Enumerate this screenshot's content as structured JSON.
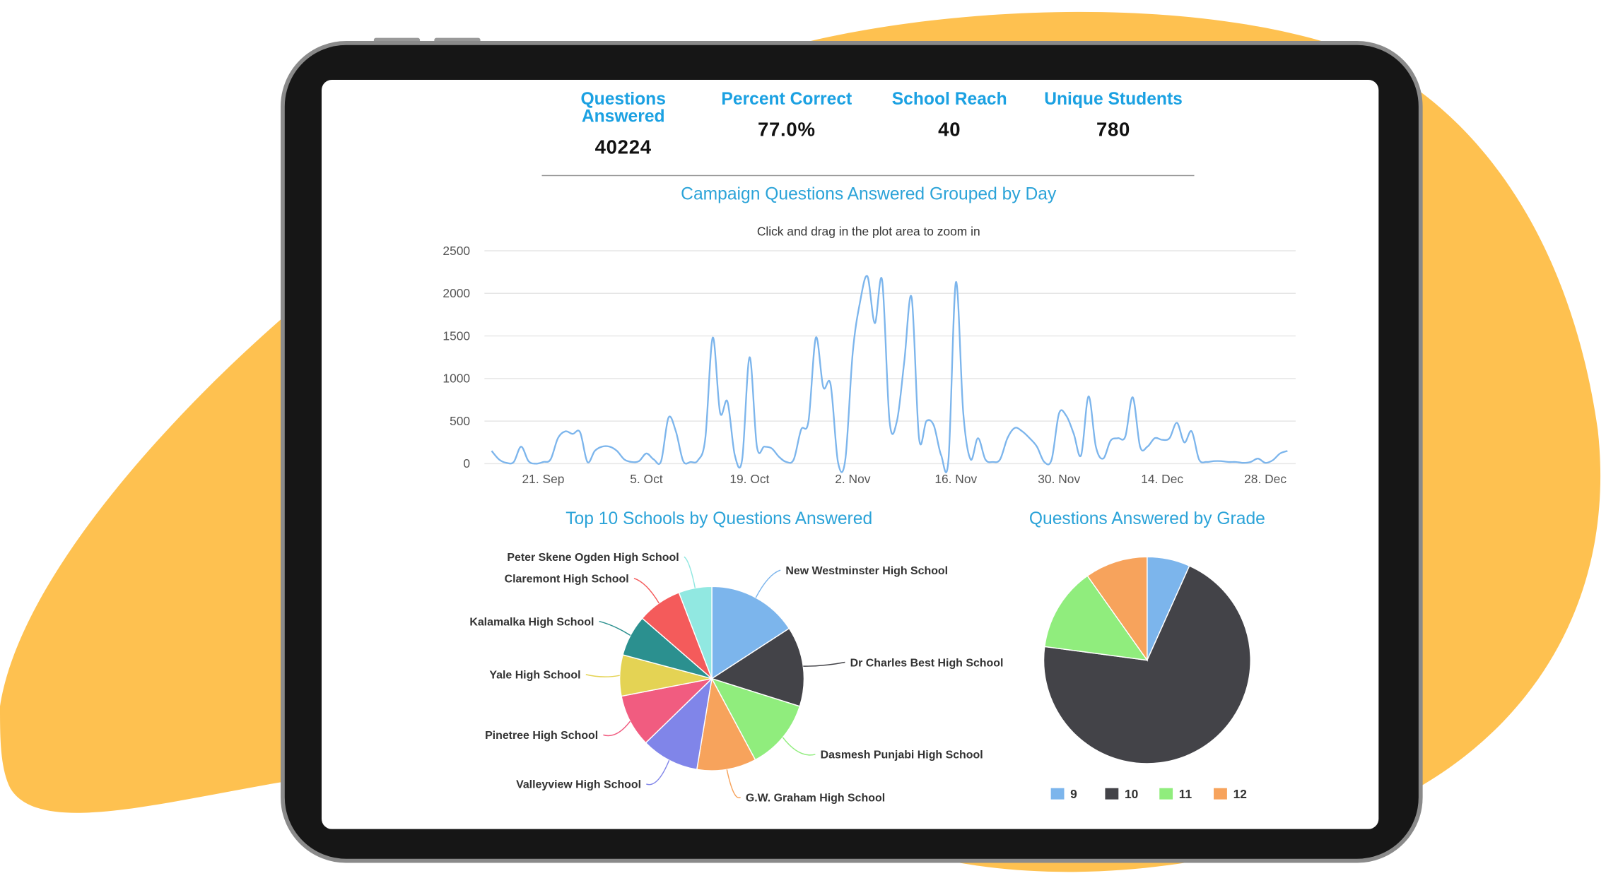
{
  "kpis": [
    {
      "label": "Questions Answered",
      "value": "40224"
    },
    {
      "label": "Percent Correct",
      "value": "77.0%"
    },
    {
      "label": "School Reach",
      "value": "40"
    },
    {
      "label": "Unique Students",
      "value": "780"
    }
  ],
  "chart_data": [
    {
      "type": "line",
      "title": "Campaign Questions Answered Grouped by Day",
      "subtitle": "Click and drag in the plot area to zoom in",
      "x": [
        "14. Sep",
        "15. Sep",
        "16. Sep",
        "17. Sep",
        "18. Sep",
        "19. Sep",
        "20. Sep",
        "21. Sep",
        "22. Sep",
        "23. Sep",
        "24. Sep",
        "25. Sep",
        "26. Sep",
        "27. Sep",
        "28. Sep",
        "29. Sep",
        "30. Sep",
        "1. Oct",
        "2. Oct",
        "3. Oct",
        "4. Oct",
        "5. Oct",
        "6. Oct",
        "7. Oct",
        "8. Oct",
        "9. Oct",
        "10. Oct",
        "11. Oct",
        "12. Oct",
        "13. Oct",
        "14. Oct",
        "15. Oct",
        "16. Oct",
        "17. Oct",
        "18. Oct",
        "19. Oct",
        "20. Oct",
        "21. Oct",
        "22. Oct",
        "23. Oct",
        "24. Oct",
        "25. Oct",
        "26. Oct",
        "27. Oct",
        "28. Oct",
        "29. Oct",
        "30. Oct",
        "31. Oct",
        "1. Nov",
        "2. Nov",
        "3. Nov",
        "4. Nov",
        "5. Nov",
        "6. Nov",
        "7. Nov",
        "8. Nov",
        "9. Nov",
        "10. Nov",
        "11. Nov",
        "12. Nov",
        "13. Nov",
        "14. Nov",
        "15. Nov",
        "16. Nov",
        "17. Nov",
        "18. Nov",
        "19. Nov",
        "20. Nov",
        "21. Nov",
        "22. Nov",
        "23. Nov",
        "24. Nov",
        "25. Nov",
        "26. Nov",
        "27. Nov",
        "28. Nov",
        "29. Nov",
        "30. Nov",
        "1. Dec",
        "2. Dec",
        "3. Dec",
        "4. Dec",
        "5. Dec",
        "6. Dec",
        "7. Dec",
        "8. Dec",
        "9. Dec",
        "10. Dec",
        "11. Dec",
        "12. Dec",
        "13. Dec",
        "14. Dec",
        "15. Dec",
        "16. Dec",
        "17. Dec",
        "18. Dec",
        "19. Dec",
        "20. Dec",
        "21. Dec",
        "22. Dec",
        "23. Dec",
        "24. Dec",
        "25. Dec",
        "26. Dec",
        "27. Dec",
        "28. Dec",
        "29. Dec",
        "30. Dec",
        "31. Dec"
      ],
      "values": [
        150,
        50,
        10,
        20,
        200,
        30,
        0,
        20,
        50,
        300,
        380,
        350,
        370,
        20,
        150,
        200,
        200,
        150,
        50,
        20,
        30,
        120,
        50,
        30,
        540,
        380,
        30,
        20,
        40,
        300,
        1480,
        600,
        730,
        100,
        50,
        1250,
        200,
        200,
        180,
        80,
        20,
        50,
        400,
        500,
        1480,
        900,
        930,
        20,
        50,
        1300,
        1900,
        2200,
        1650,
        2150,
        500,
        500,
        1200,
        1950,
        300,
        500,
        450,
        100,
        50,
        2130,
        600,
        50,
        300,
        50,
        20,
        50,
        300,
        420,
        380,
        300,
        200,
        20,
        50,
        590,
        560,
        350,
        100,
        790,
        200,
        60,
        270,
        300,
        320,
        780,
        200,
        200,
        300,
        280,
        300,
        480,
        250,
        380,
        50,
        20,
        30,
        30,
        20,
        20,
        10,
        20,
        60,
        10,
        40,
        120,
        150
      ],
      "xticks": [
        "21. Sep",
        "5. Oct",
        "19. Oct",
        "2. Nov",
        "16. Nov",
        "30. Nov",
        "14. Dec",
        "28. Dec"
      ],
      "color": "#7cb5ec",
      "ylim": [
        0,
        2500
      ],
      "yticks": [
        0,
        500,
        1000,
        1500,
        2000,
        2500
      ],
      "grid": true
    },
    {
      "type": "pie",
      "title": "Top 10 Schools by Questions Answered",
      "data_labels": true,
      "categories": [
        "New Westminster High School",
        "Dr Charles Best High School",
        "Dasmesh Punjabi High School",
        "G.W. Graham High School",
        "Valleyview High School",
        "Pinetree High School",
        "Yale High School",
        "Kalamalka High School",
        "Claremont High School",
        "Peter Skene Ogden High School"
      ],
      "values": [
        15.8,
        14,
        12.3,
        10.4,
        10.1,
        9.2,
        7.2,
        7.2,
        7.8,
        5.8
      ],
      "colors": [
        "#7cb5ec",
        "#434348",
        "#90ed7d",
        "#f7a35c",
        "#8085e9",
        "#f15c80",
        "#e4d354",
        "#2b908f",
        "#f45b5b",
        "#91e8e1"
      ]
    },
    {
      "type": "pie",
      "title": "Questions Answered by Grade",
      "legend": "bottom",
      "categories": [
        "9",
        "10",
        "11",
        "12"
      ],
      "values": [
        6.7,
        70.4,
        13.1,
        9.8
      ],
      "colors": [
        "#7cb5ec",
        "#434348",
        "#90ed7d",
        "#f7a35c"
      ]
    }
  ]
}
